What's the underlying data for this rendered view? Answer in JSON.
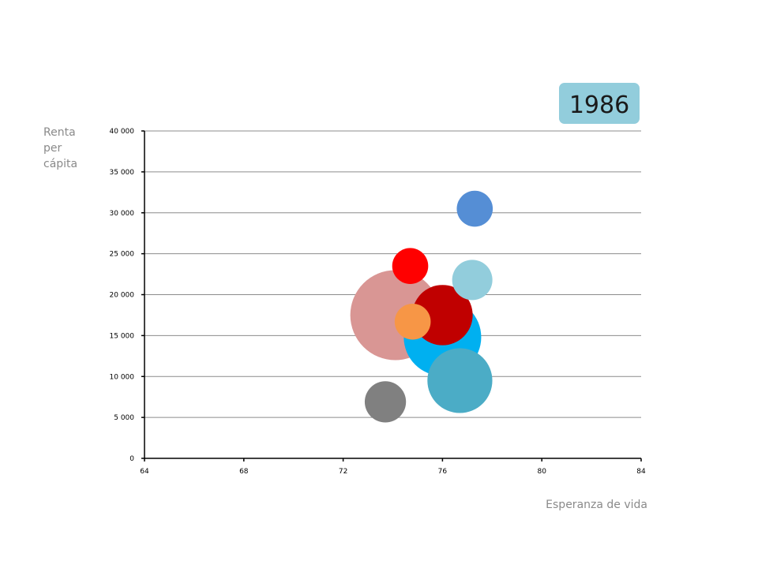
{
  "chart_data": {
    "type": "bubble",
    "year": "1986",
    "xlabel": "Esperanza de vida",
    "ylabel": [
      "Renta",
      "per",
      "cápita"
    ],
    "xlim": [
      64,
      84
    ],
    "ylim": [
      0,
      40000
    ],
    "x_ticks": [
      64,
      68,
      72,
      76,
      80,
      84
    ],
    "y_ticks": [
      0,
      5000,
      10000,
      15000,
      20000,
      25000,
      30000,
      35000,
      40000
    ],
    "x_tick_labels": [
      "64",
      "68",
      "72",
      "76",
      "80",
      "84"
    ],
    "y_tick_labels": [
      "0",
      "5 000",
      "10 000",
      "15 000",
      "20 000",
      "25 000",
      "30 000",
      "35 000",
      "40 000"
    ],
    "grid": true,
    "bubbles": [
      {
        "x": 74.7,
        "y": 23500,
        "size": 0.16,
        "color": "#ff0000"
      },
      {
        "x": 77.2,
        "y": 21800,
        "size": 0.2,
        "color": "#92cddc"
      },
      {
        "x": 76.0,
        "y": 17500,
        "size": 0.45,
        "color": "#c00000"
      },
      {
        "x": 74.1,
        "y": 17500,
        "size": 1.0,
        "color": "#d99694"
      },
      {
        "x": 76.0,
        "y": 14800,
        "size": 0.74,
        "color": "#00b0f0"
      },
      {
        "x": 74.8,
        "y": 16700,
        "size": 0.16,
        "color": "#f79646"
      },
      {
        "x": 77.3,
        "y": 30500,
        "size": 0.16,
        "color": "#558ed5"
      },
      {
        "x": 76.7,
        "y": 9500,
        "size": 0.52,
        "color": "#4bacc6"
      },
      {
        "x": 73.7,
        "y": 6900,
        "size": 0.21,
        "color": "#808080"
      }
    ],
    "colors": {
      "grid": "#8c8c8c",
      "axis": "#000000",
      "badge": "#92cddc"
    }
  }
}
